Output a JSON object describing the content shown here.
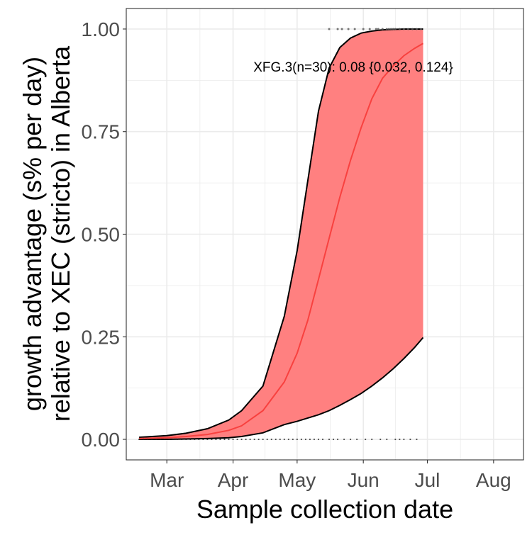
{
  "chart_data": {
    "type": "line",
    "xlabel": "Sample collection date",
    "ylabel_lines": [
      "growth advantage (s% per day)",
      "relative to XEC (stricto) in Alberta"
    ],
    "annotation": "XFG.3(n=30): 0.08 {0.032, 0.124}",
    "x_tick_labels": [
      "Mar",
      "Apr",
      "May",
      "Jun",
      "Jul",
      "Aug"
    ],
    "x_ticks": [
      "2025-03-01",
      "2025-04-01",
      "2025-05-01",
      "2025-06-01",
      "2025-07-01",
      "2025-08-01"
    ],
    "xlim": [
      "2025-02-10",
      "2025-08-15"
    ],
    "y_tick_labels": [
      "0.00",
      "0.25",
      "0.50",
      "0.75",
      "1.00"
    ],
    "y_ticks": [
      0,
      0.25,
      0.5,
      0.75,
      1.0
    ],
    "ylim": [
      -0.05,
      1.05
    ],
    "grid": true,
    "colors": {
      "ribbon": "#ff8080",
      "fit_line": "#f8413f",
      "bounds": "#000000",
      "grid": "#ebebeb",
      "axis_text": "#4d4d4d"
    },
    "fit": {
      "x": [
        "2025-02-16",
        "2025-03-01",
        "2025-03-10",
        "2025-03-20",
        "2025-03-30",
        "2025-04-05",
        "2025-04-15",
        "2025-04-25",
        "2025-05-01",
        "2025-05-06",
        "2025-05-11",
        "2025-05-16",
        "2025-05-21",
        "2025-05-26",
        "2025-05-31",
        "2025-06-05",
        "2025-06-10",
        "2025-06-15",
        "2025-06-20",
        "2025-06-25",
        "2025-06-29"
      ],
      "mean": [
        0.002,
        0.004,
        0.007,
        0.012,
        0.022,
        0.033,
        0.07,
        0.14,
        0.21,
        0.29,
        0.39,
        0.49,
        0.59,
        0.68,
        0.76,
        0.83,
        0.88,
        0.91,
        0.935,
        0.953,
        0.965
      ],
      "upper": [
        0.005,
        0.009,
        0.015,
        0.026,
        0.047,
        0.07,
        0.13,
        0.3,
        0.46,
        0.63,
        0.8,
        0.905,
        0.955,
        0.978,
        0.99,
        0.995,
        0.998,
        0.999,
        1.0,
        1.0,
        1.0
      ],
      "lower": [
        0.0,
        0.0,
        0.001,
        0.002,
        0.004,
        0.007,
        0.016,
        0.036,
        0.044,
        0.052,
        0.06,
        0.07,
        0.083,
        0.097,
        0.112,
        0.13,
        0.15,
        0.172,
        0.197,
        0.224,
        0.248
      ]
    },
    "points_at_one": [
      "2025-05-16",
      "2025-05-20",
      "2025-05-22",
      "2025-05-25",
      "2025-05-28",
      "2025-06-01",
      "2025-06-04",
      "2025-06-07",
      "2025-06-08",
      "2025-06-10",
      "2025-06-12",
      "2025-06-13",
      "2025-06-14",
      "2025-06-15",
      "2025-06-16",
      "2025-06-18",
      "2025-06-20",
      "2025-06-22",
      "2025-06-24",
      "2025-06-26",
      "2025-06-28"
    ],
    "points_at_zero": [
      "2025-02-16",
      "2025-02-18",
      "2025-02-20",
      "2025-02-22",
      "2025-02-24",
      "2025-02-26",
      "2025-02-28",
      "2025-03-02",
      "2025-03-04",
      "2025-03-06",
      "2025-03-08",
      "2025-03-10",
      "2025-03-12",
      "2025-03-14",
      "2025-03-16",
      "2025-03-18",
      "2025-03-20",
      "2025-03-22",
      "2025-03-24",
      "2025-03-26",
      "2025-03-28",
      "2025-03-30",
      "2025-04-01",
      "2025-04-03",
      "2025-04-05",
      "2025-04-07",
      "2025-04-09",
      "2025-04-11",
      "2025-04-13",
      "2025-04-15",
      "2025-04-17",
      "2025-04-19",
      "2025-04-21",
      "2025-04-23",
      "2025-04-25",
      "2025-04-27",
      "2025-04-29",
      "2025-05-01",
      "2025-05-03",
      "2025-05-05",
      "2025-05-07",
      "2025-05-09",
      "2025-05-11",
      "2025-05-13",
      "2025-05-16",
      "2025-05-18",
      "2025-05-20",
      "2025-05-23",
      "2025-05-26",
      "2025-05-29",
      "2025-06-02",
      "2025-06-05",
      "2025-06-09",
      "2025-06-12",
      "2025-06-16",
      "2025-06-18",
      "2025-06-20",
      "2025-06-23",
      "2025-06-26"
    ]
  }
}
